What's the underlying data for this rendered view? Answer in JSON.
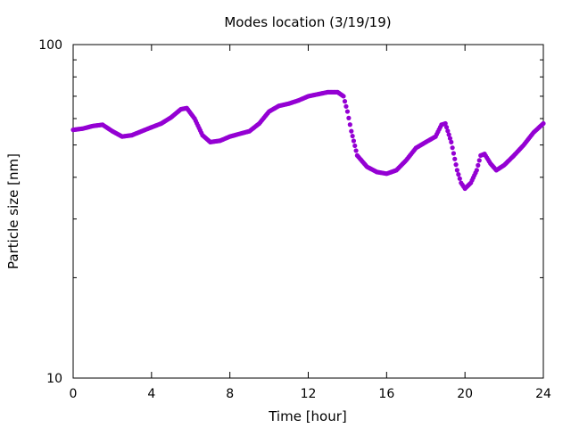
{
  "chart_data": {
    "type": "scatter",
    "title": "Modes location (3/19/19)",
    "xlabel": "Time [hour]",
    "ylabel": "Particle size [nm]",
    "xlim": [
      0,
      24
    ],
    "ylim": [
      10,
      100
    ],
    "yscale": "log",
    "grid": false,
    "legend": "none",
    "x_ticks": [
      0,
      4,
      8,
      12,
      16,
      20,
      24
    ],
    "x_tick_labels": [
      "0",
      "4",
      "8",
      "12",
      "16",
      "20",
      "24"
    ],
    "y_ticks": [
      10,
      100
    ],
    "y_tick_labels": [
      "10",
      "100"
    ],
    "marker_color": "#9400d3",
    "series": [
      {
        "x": [
          0.0,
          0.5,
          1.0,
          1.5,
          2.0,
          2.5,
          3.0,
          3.5,
          4.0,
          4.5,
          5.0,
          5.5,
          5.8,
          6.2,
          6.6,
          7.0,
          7.5,
          8.0,
          8.5,
          9.0,
          9.5,
          10.0,
          10.5,
          11.0,
          11.5,
          12.0,
          12.5,
          13.0,
          13.5,
          13.8,
          14.0,
          14.2,
          14.5,
          15.0,
          15.5,
          16.0,
          16.5,
          17.0,
          17.5,
          18.0,
          18.5,
          18.8,
          19.0,
          19.3,
          19.6,
          19.8,
          20.0,
          20.3,
          20.6,
          20.8,
          21.0,
          21.3,
          21.6,
          22.0,
          22.5,
          23.0,
          23.5,
          24.0
        ],
        "y": [
          55.5,
          56.0,
          57.0,
          57.5,
          55.0,
          53.0,
          53.5,
          55.0,
          56.5,
          58.0,
          60.5,
          64.0,
          64.5,
          60.0,
          53.5,
          51.0,
          51.5,
          53.0,
          54.0,
          55.0,
          58.0,
          63.0,
          65.5,
          66.5,
          68.0,
          70.0,
          71.0,
          72.0,
          72.0,
          70.0,
          63.0,
          55.0,
          46.5,
          43.0,
          41.5,
          41.0,
          42.0,
          45.0,
          49.0,
          51.0,
          53.0,
          57.5,
          58.0,
          51.0,
          42.0,
          38.5,
          37.0,
          38.5,
          42.0,
          46.5,
          47.0,
          44.0,
          42.0,
          43.5,
          46.5,
          50.0,
          54.5,
          58.0
        ]
      }
    ]
  }
}
